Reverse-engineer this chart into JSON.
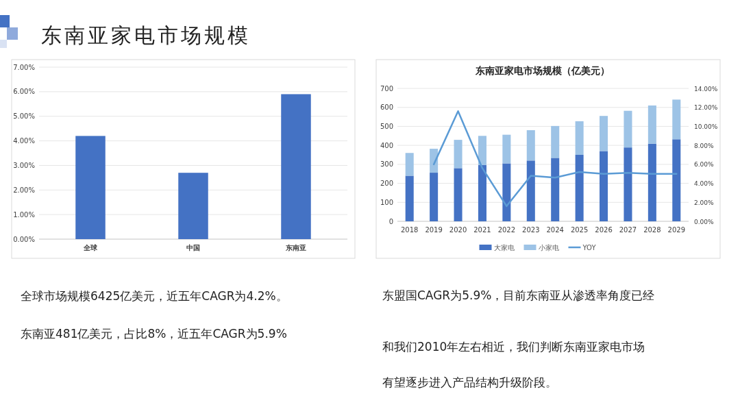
{
  "chart_data": [
    {
      "type": "bar",
      "title": "东南亚家电市场规模",
      "categories": [
        "全球",
        "中国",
        "东南亚"
      ],
      "values": [
        4.2,
        2.7,
        5.9
      ],
      "color": "#4472c4",
      "ylim": [
        0,
        7
      ],
      "yticks": [
        {
          "value": 0,
          "label": "0.00%"
        },
        {
          "value": 1,
          "label": "1.00%"
        },
        {
          "value": 2,
          "label": "2.00%"
        },
        {
          "value": 3,
          "label": "3.00%"
        },
        {
          "value": 4,
          "label": "4.00%"
        },
        {
          "value": 5,
          "label": "5.00%"
        },
        {
          "value": 6,
          "label": "6.00%"
        },
        {
          "value": 7,
          "label": "7.00%"
        }
      ],
      "grid": "y",
      "annotations": [
        "全球市场规模6425亿美元，近五年CAGR为4.2%。",
        "东南亚481亿美元，占比8%，近五年CAGR为5.9%"
      ]
    },
    {
      "type": "bar",
      "title": "东南亚家电市场规模（亿美元）",
      "categories": [
        "2018",
        "2019",
        "2020",
        "2021",
        "2022",
        "2023",
        "2024",
        "2025",
        "2026",
        "2027",
        "2028",
        "2029"
      ],
      "stacked": true,
      "series": [
        {
          "name": "大家电",
          "color": "#4472c4",
          "values": [
            240,
            256,
            280,
            296,
            305,
            320,
            334,
            350,
            370,
            389,
            409,
            432
          ]
        },
        {
          "name": "小家电",
          "color": "#9dc3e6",
          "values": [
            120,
            126,
            149,
            154,
            151,
            160,
            168,
            177,
            185,
            193,
            201,
            209
          ]
        },
        {
          "name": "YOY",
          "type": "line",
          "axis": "y2",
          "color": "#5b9bd5",
          "values": [
            null,
            6.0,
            11.6,
            5.6,
            1.6,
            4.8,
            4.6,
            5.2,
            5.0,
            5.1,
            5.0,
            5.0
          ]
        }
      ],
      "ylim": [
        0,
        700
      ],
      "yticks": [
        0,
        100,
        200,
        300,
        400,
        500,
        600,
        700
      ],
      "y2lim": [
        0,
        14
      ],
      "y2ticks": [
        {
          "value": 0,
          "label": "0.00%"
        },
        {
          "value": 2,
          "label": "2.00%"
        },
        {
          "value": 4,
          "label": "4.00%"
        },
        {
          "value": 6,
          "label": "6.00%"
        },
        {
          "value": 8,
          "label": "8.00%"
        },
        {
          "value": 10,
          "label": "10.00%"
        },
        {
          "value": 12,
          "label": "12.00%"
        },
        {
          "value": 14,
          "label": "14.00%"
        }
      ],
      "grid": "y",
      "legend": "bottom",
      "annotations": [
        "东盟国CAGR为5.9%，目前东南亚从渗透率角度已经",
        "和我们2010年左右相近，我们判断东南亚家电市场",
        "有望逐步进入产品结构升级阶段。"
      ]
    }
  ]
}
